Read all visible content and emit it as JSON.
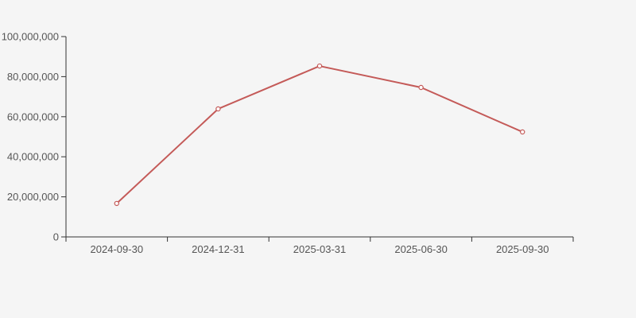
{
  "chart_data": {
    "type": "line",
    "title": "",
    "xlabel": "",
    "ylabel": "",
    "categories": [
      "2024-09-30",
      "2024-12-31",
      "2025-03-31",
      "2025-06-30",
      "2025-09-30"
    ],
    "series": [
      {
        "name": "value",
        "values": [
          16700000,
          63900000,
          85300000,
          74600000,
          52400000
        ]
      }
    ],
    "ylim": [
      0,
      100000000
    ],
    "y_ticks": [
      {
        "value": 0,
        "label": "0"
      },
      {
        "value": 20000000,
        "label": "20,000,000"
      },
      {
        "value": 40000000,
        "label": "40,000,000"
      },
      {
        "value": 60000000,
        "label": "60,000,000"
      },
      {
        "value": 80000000,
        "label": "80,000,000"
      },
      {
        "value": 100000000,
        "label": "100,000,000"
      }
    ],
    "grid": false,
    "legend": "none",
    "marker": "open-circle",
    "colors": {
      "line": "#c45a58",
      "marker_fill": "#ffffff",
      "axis": "#333333",
      "label": "#555555",
      "background": "#f5f5f5"
    }
  }
}
